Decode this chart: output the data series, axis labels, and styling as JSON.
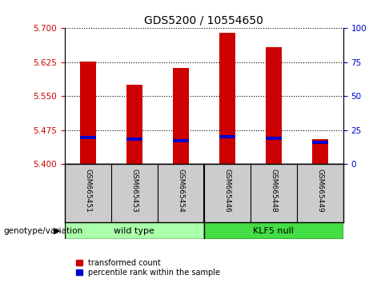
{
  "title": "GDS5200 / 10554650",
  "samples": [
    "GSM665451",
    "GSM665453",
    "GSM665454",
    "GSM665446",
    "GSM665448",
    "GSM665449"
  ],
  "red_values": [
    5.627,
    5.575,
    5.612,
    5.69,
    5.658,
    5.455
  ],
  "blue_values": [
    5.458,
    5.455,
    5.452,
    5.46,
    5.457,
    5.448
  ],
  "ymin": 5.4,
  "ymax": 5.7,
  "yticks_left": [
    5.4,
    5.475,
    5.55,
    5.625,
    5.7
  ],
  "yticks_right": [
    0,
    25,
    50,
    75,
    100
  ],
  "bar_color": "#CC0000",
  "dot_color": "#0000CC",
  "bar_width": 0.35,
  "tick_color_left": "#CC0000",
  "tick_color_right": "#0000CC",
  "background_xtick": "#CCCCCC",
  "wild_type_color": "#AAFFAA",
  "klf5_color": "#44DD44",
  "group_border_color": "#000000",
  "legend_red_label": "transformed count",
  "legend_blue_label": "percentile rank within the sample",
  "genotype_label": "genotype/variation",
  "wild_type_label": "wild type",
  "klf5_label": "KLF5 null"
}
